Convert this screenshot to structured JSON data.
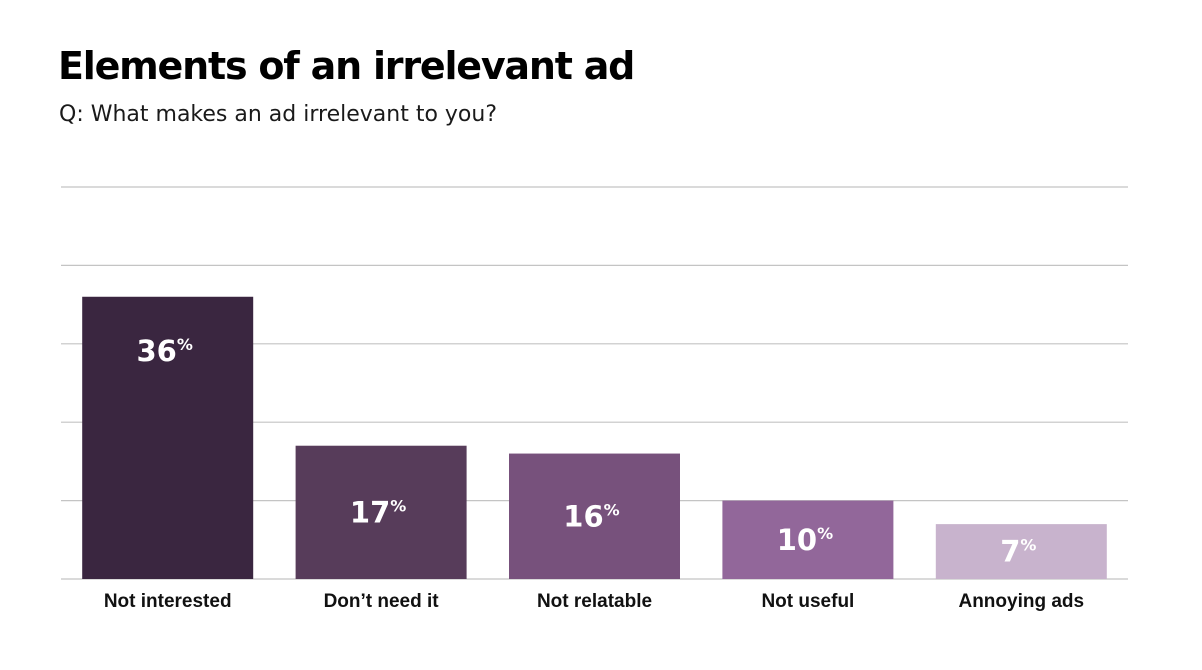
{
  "chart_data": {
    "type": "bar",
    "title": "Elements of an irrelevant ad",
    "subtitle": "Q: What makes an ad irrelevant to you?",
    "categories": [
      "Not interested",
      "Don’t need it",
      "Not relatable",
      "Not useful",
      "Annoying ads"
    ],
    "values": [
      36,
      17,
      16,
      10,
      7
    ],
    "value_suffix": "%",
    "value_labels": [
      "36",
      "17",
      "16",
      "10",
      "7"
    ],
    "colors": [
      "#3a2640",
      "#573c5a",
      "#77517c",
      "#92679a",
      "#c8b3cd"
    ],
    "ylim": [
      0,
      50
    ],
    "grid": true,
    "xlabel": "",
    "ylabel": ""
  }
}
